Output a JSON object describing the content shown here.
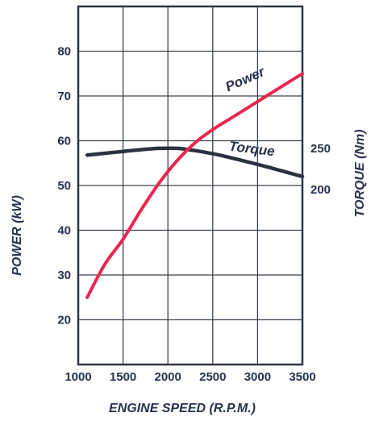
{
  "chart_data": {
    "type": "line",
    "xlabel": "ENGINE SPEED (R.P.M.)",
    "ylabel": "POWER (kW)",
    "y2label": "TORQUE (Nm)",
    "xlim": [
      1000,
      3500
    ],
    "ylim": [
      10,
      90
    ],
    "y2_ticks": [
      {
        "label": "250",
        "y_on_power_axis": 58.3
      },
      {
        "label": "200",
        "y_on_power_axis": 49.1
      }
    ],
    "x_ticks": [
      "1000",
      "1500",
      "2000",
      "2500",
      "3000",
      "3500"
    ],
    "y_ticks": [
      "20",
      "30",
      "40",
      "50",
      "60",
      "70",
      "80"
    ],
    "grid": true,
    "series": [
      {
        "name": "Power",
        "color": "#e8264f",
        "x": [
          1100,
          1300,
          1500,
          1700,
          1900,
          2100,
          2300,
          2500,
          2700,
          2900,
          3100,
          3300,
          3500
        ],
        "y": [
          25,
          32.5,
          38,
          44.5,
          50.5,
          55.5,
          59.5,
          62.5,
          65,
          67.5,
          70,
          72.5,
          75
        ]
      },
      {
        "name": "Torque",
        "color": "#2b3140",
        "x": [
          1100,
          1300,
          1500,
          1700,
          1900,
          2100,
          2300,
          2500,
          2700,
          2900,
          3100,
          3300,
          3500
        ],
        "y": [
          56.8,
          57.2,
          57.6,
          58.0,
          58.3,
          58.3,
          57.8,
          57.1,
          56.2,
          55.2,
          54.2,
          53.1,
          52.0
        ]
      }
    ]
  }
}
